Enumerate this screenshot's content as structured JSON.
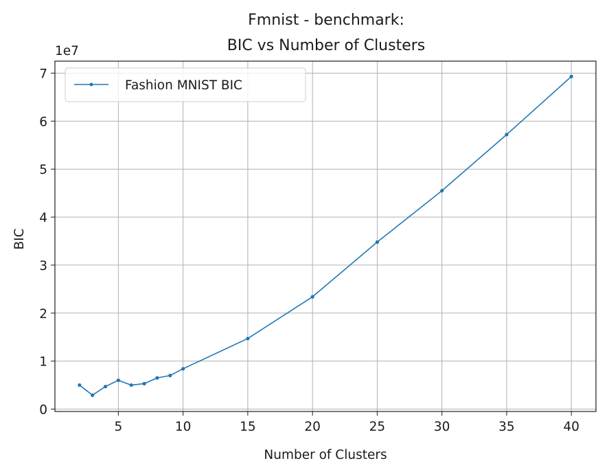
{
  "chart_data": {
    "type": "line",
    "title_lines": [
      "Fmnist - benchmark:",
      "BIC vs Number of Clusters"
    ],
    "xlabel": "Number of Clusters",
    "ylabel": "BIC",
    "y_offset_label": "1e7",
    "xlim": [
      0.1,
      41.9
    ],
    "ylim": [
      -0.05,
      7.25
    ],
    "y_scale": 10000000,
    "x_ticks": [
      5,
      10,
      15,
      20,
      25,
      30,
      35,
      40
    ],
    "x_tick_labels": [
      "5",
      "10",
      "15",
      "20",
      "25",
      "30",
      "35",
      "40"
    ],
    "y_ticks": [
      0,
      1,
      2,
      3,
      4,
      5,
      6,
      7
    ],
    "y_tick_labels": [
      "0",
      "1",
      "2",
      "3",
      "4",
      "5",
      "6",
      "7"
    ],
    "grid": true,
    "legend_position": "upper left",
    "series": [
      {
        "name": "Fashion MNIST BIC",
        "color": "#1f77b4",
        "x": [
          2,
          3,
          4,
          5,
          6,
          7,
          8,
          9,
          10,
          15,
          20,
          25,
          30,
          35,
          40
        ],
        "y": [
          5000000,
          2900000,
          4700000,
          6000000,
          5000000,
          5300000,
          6500000,
          7000000,
          8400000,
          14700000,
          23400000,
          34800000,
          45500000,
          57200000,
          69300000
        ]
      }
    ]
  }
}
